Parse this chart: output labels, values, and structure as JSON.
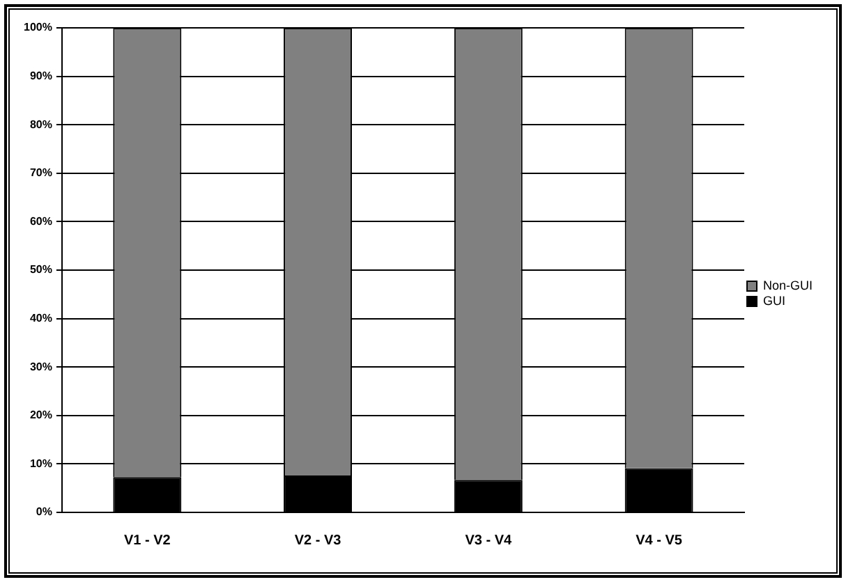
{
  "chart_data": {
    "type": "bar",
    "stacked": true,
    "categories": [
      "V1 - V2",
      "V2 - V3",
      "V3 - V4",
      "V4 - V5"
    ],
    "series": [
      {
        "name": "GUI",
        "color": "#000000",
        "values": [
          7.3,
          7.6,
          6.7,
          9.1
        ]
      },
      {
        "name": "Non-GUI",
        "color": "#808080",
        "values": [
          92.7,
          92.4,
          93.3,
          90.9
        ]
      }
    ],
    "ylim": [
      0,
      100
    ],
    "yticks": [
      {
        "value": 0,
        "label": "0%"
      },
      {
        "value": 10,
        "label": "10%"
      },
      {
        "value": 20,
        "label": "20%"
      },
      {
        "value": 30,
        "label": "30%"
      },
      {
        "value": 40,
        "label": "40%"
      },
      {
        "value": 50,
        "label": "50%"
      },
      {
        "value": 60,
        "label": "60%"
      },
      {
        "value": 70,
        "label": "70%"
      },
      {
        "value": 80,
        "label": "80%"
      },
      {
        "value": 90,
        "label": "90%"
      },
      {
        "value": 100,
        "label": "100%"
      }
    ],
    "grid": "y",
    "legend": "right"
  }
}
